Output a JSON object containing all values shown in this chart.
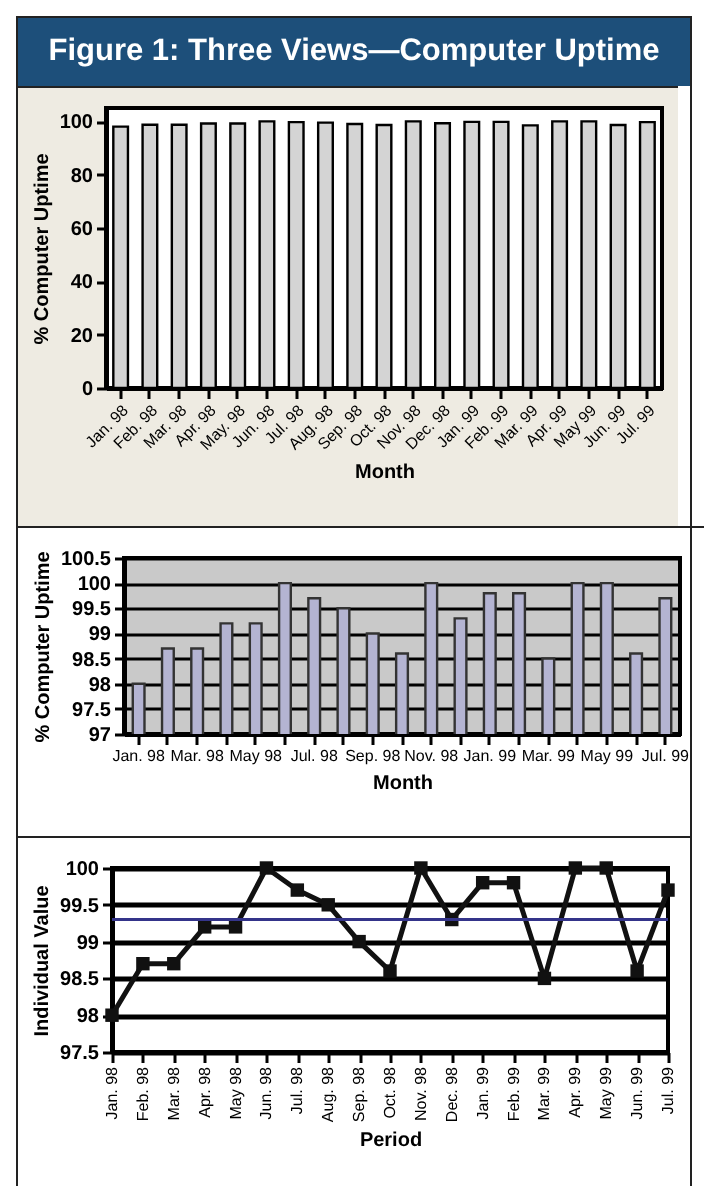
{
  "chart_data": [
    {
      "type": "bar",
      "title": "Figure 1: Three Views—Computer Uptime",
      "xlabel": "Month",
      "ylabel": "% Computer Uptime",
      "categories": [
        "Jan. 98",
        "Feb. 98",
        "Mar. 98",
        "Apr. 98",
        "May. 98",
        "Jun. 98",
        "Jul. 98",
        "Aug. 98",
        "Sep. 98",
        "Oct. 98",
        "Nov. 98",
        "Dec. 98",
        "Jan. 99",
        "Feb. 99",
        "Mar. 99",
        "Apr. 99",
        "May 99",
        "Jun. 99",
        "Jul. 99"
      ],
      "series": [
        {
          "color": "#d4d4d4",
          "values": [
            98,
            98.7,
            98.7,
            99.2,
            99.2,
            100,
            99.7,
            99.5,
            99.0,
            98.6,
            100,
            99.3,
            99.8,
            99.8,
            98.5,
            100,
            100,
            98.6,
            99.7
          ]
        }
      ],
      "ylim": [
        0,
        105
      ],
      "yticks": [
        0,
        20,
        40,
        60,
        80,
        100
      ],
      "grid": false
    },
    {
      "type": "bar",
      "xlabel": "Month",
      "ylabel": "% Computer Uptime",
      "categories": [
        "Jan. 98",
        null,
        "Mar. 98",
        null,
        "May 98",
        null,
        "Jul. 98",
        null,
        "Sep. 98",
        null,
        "Nov. 98",
        null,
        "Jan. 99",
        null,
        "Mar. 99",
        null,
        "May 99",
        null,
        "Jul. 99"
      ],
      "series": [
        {
          "color": "#b4b4d2",
          "values": [
            98,
            98.7,
            98.7,
            99.2,
            99.2,
            100,
            99.7,
            99.5,
            99.0,
            98.6,
            100,
            99.3,
            99.8,
            99.8,
            98.5,
            100,
            100,
            98.6,
            99.7
          ]
        }
      ],
      "ylim": [
        97,
        100.5
      ],
      "yticks": [
        97,
        97.5,
        98,
        98.5,
        99,
        99.5,
        100,
        100.5
      ],
      "grid": "y"
    },
    {
      "type": "line",
      "xlabel": "Period",
      "ylabel": "Individual Value",
      "marker": "square",
      "line_style": "solid",
      "categories": [
        "Jan. 98",
        "Feb. 98",
        "Mar. 98",
        "Apr. 98",
        "May 98",
        "Jun. 98",
        "Jul. 98",
        "Aug. 98",
        "Sep. 98",
        "Oct. 98",
        "Nov. 98",
        "Dec. 98",
        "Jan. 99",
        "Feb. 99",
        "Mar. 99",
        "Apr. 99",
        "May 99",
        "Jun. 99",
        "Jul. 99"
      ],
      "series": [
        {
          "color": "#111111",
          "values": [
            98,
            98.7,
            98.7,
            99.2,
            99.2,
            100,
            99.7,
            99.5,
            99.0,
            98.6,
            100,
            99.3,
            99.8,
            99.8,
            98.5,
            100,
            100,
            98.6,
            99.7
          ]
        }
      ],
      "ylim": [
        97.5,
        100
      ],
      "yticks": [
        97.5,
        98,
        98.5,
        99,
        99.5,
        100
      ],
      "grid": "y",
      "ref_lines": [
        {
          "axis": "y",
          "value": 99.3,
          "color": "#34348a"
        }
      ]
    }
  ]
}
